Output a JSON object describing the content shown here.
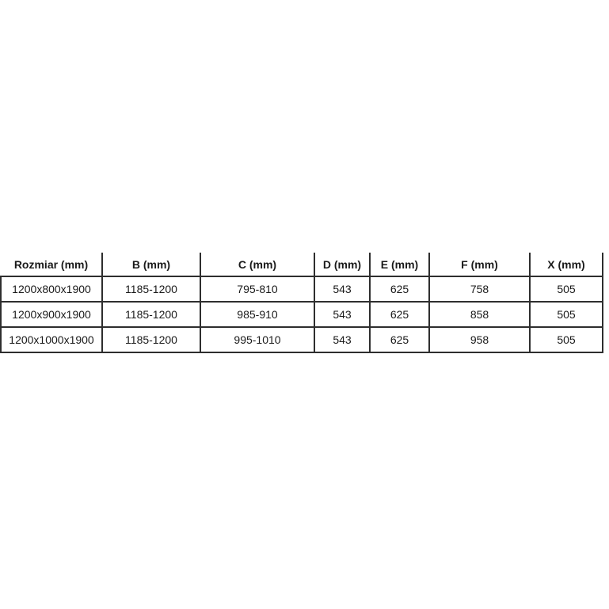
{
  "chart_data": {
    "type": "table",
    "title": "",
    "columns": [
      "Rozmiar (mm)",
      "B (mm)",
      "C (mm)",
      "D (mm)",
      "E (mm)",
      "F (mm)",
      "X (mm)"
    ],
    "rows": [
      [
        "1200x800x1900",
        "1185-1200",
        "795-810",
        "543",
        "625",
        "758",
        "505"
      ],
      [
        "1200x900x1900",
        "1185-1200",
        "985-910",
        "543",
        "625",
        "858",
        "505"
      ],
      [
        "1200x1000x1900",
        "1185-1200",
        "995-1010",
        "543",
        "625",
        "958",
        "505"
      ]
    ]
  },
  "colors": {
    "border": "#2e2e2e",
    "text": "#1a1a1a",
    "background": "#ffffff"
  }
}
